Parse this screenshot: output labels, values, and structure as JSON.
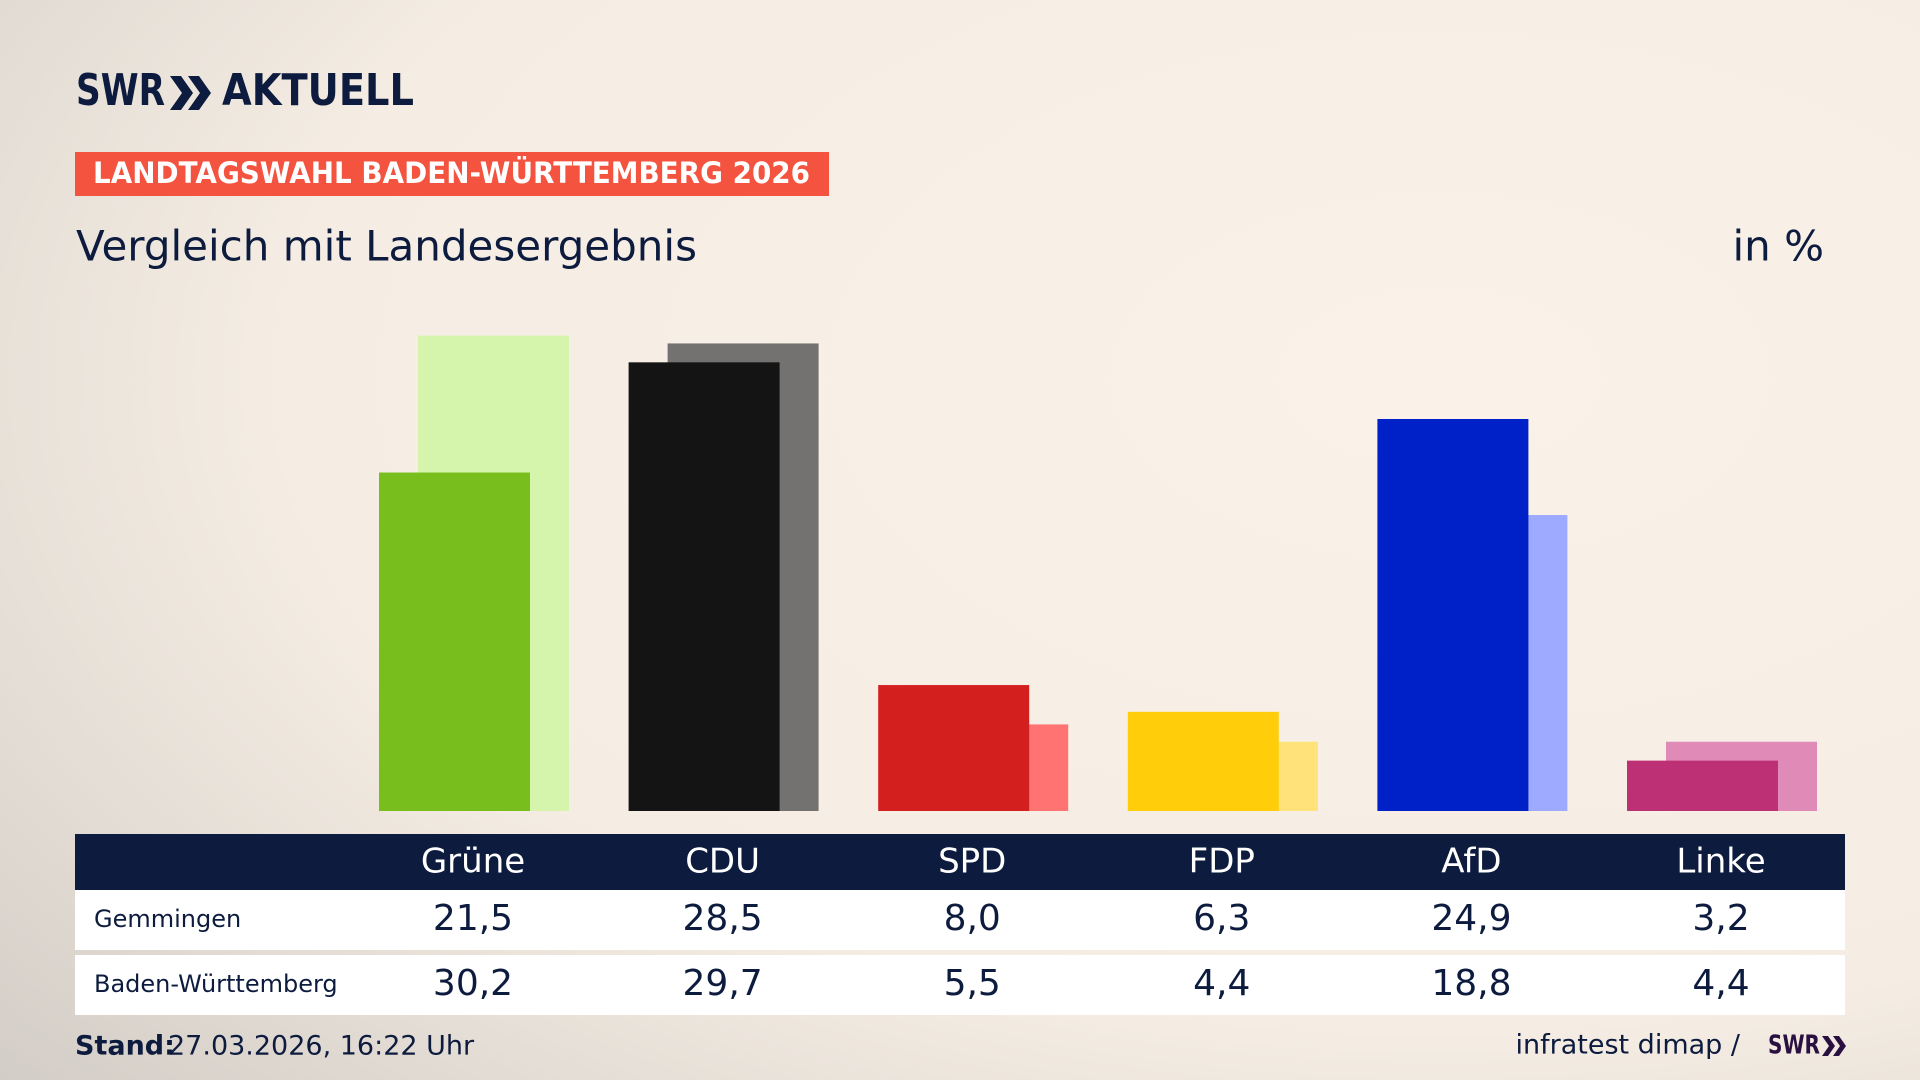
{
  "chart_data": {
    "type": "bar",
    "brand": "SWR",
    "brand_name": "AKTUELL",
    "title": "LANDTAGSWAHL BADEN-WÜRTTEMBERG 2026",
    "subtitle": "Vergleich mit Landesergebnis",
    "unit_label": "in %",
    "categories": [
      "Grüne",
      "CDU",
      "SPD",
      "FDP",
      "AfD",
      "Linke"
    ],
    "series": [
      {
        "name": "Gemmingen",
        "colors": [
          "#78be1c",
          "#141414",
          "#d41f1f",
          "#ffcd0a",
          "#0021c8",
          "#be3075"
        ],
        "values": [
          21.5,
          28.5,
          8.0,
          6.3,
          24.9,
          3.2
        ],
        "value_labels": [
          "21,5",
          "28,5",
          "8,0",
          "6,3",
          "24,9",
          "3,2"
        ]
      },
      {
        "name": "Baden-Württemberg",
        "colors": [
          "#d6f5ac",
          "#747270",
          "#ff7373",
          "#ffe27a",
          "#9eaaff",
          "#e08ab8"
        ],
        "values": [
          30.2,
          29.7,
          5.5,
          4.4,
          18.8,
          4.4
        ],
        "value_labels": [
          "30,2",
          "29,7",
          "5,5",
          "4,4",
          "18,8",
          "4,4"
        ]
      }
    ],
    "ylim": [
      0,
      35
    ],
    "stand_label": "Stand:",
    "stand": "27.03.2026, 16:22 Uhr",
    "source": "infratest dimap /",
    "source_brand": "SWR"
  }
}
